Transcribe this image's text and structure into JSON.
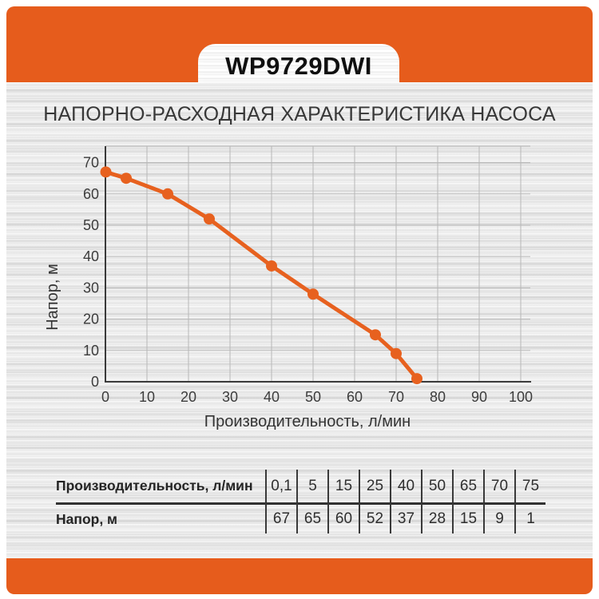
{
  "header": {
    "model": "WP9729DWI"
  },
  "accent_color": "#e65c1c",
  "chart_data": {
    "type": "line",
    "title": "НАПОРНО-РАСХОДНАЯ ХАРАКТЕРИСТИКА НАСОСА",
    "xlabel": "Производительность, л/мин",
    "ylabel": "Напор, м",
    "x": [
      0.1,
      5,
      15,
      25,
      40,
      50,
      65,
      70,
      75
    ],
    "y": [
      67,
      65,
      60,
      52,
      37,
      28,
      15,
      9,
      1
    ],
    "xlim": [
      0,
      100
    ],
    "ylim": [
      0,
      75
    ],
    "x_ticks": [
      0,
      10,
      20,
      30,
      40,
      50,
      60,
      70,
      80,
      90,
      100
    ],
    "y_ticks": [
      0,
      10,
      20,
      30,
      40,
      50,
      60,
      70
    ],
    "grid": true,
    "legend": "none",
    "line_color": "#e7611f",
    "marker": "circle",
    "grid_color": "#b7b7b7",
    "axis_color": "#3a3a3a",
    "tick_color": "#3c3c3c"
  },
  "table": {
    "rows": [
      {
        "label": "Производительность, л/мин",
        "values": [
          "0,1",
          "5",
          "15",
          "25",
          "40",
          "50",
          "65",
          "70",
          "75"
        ]
      },
      {
        "label": "Напор, м",
        "values": [
          "67",
          "65",
          "60",
          "52",
          "37",
          "28",
          "15",
          "9",
          "1"
        ]
      }
    ]
  }
}
